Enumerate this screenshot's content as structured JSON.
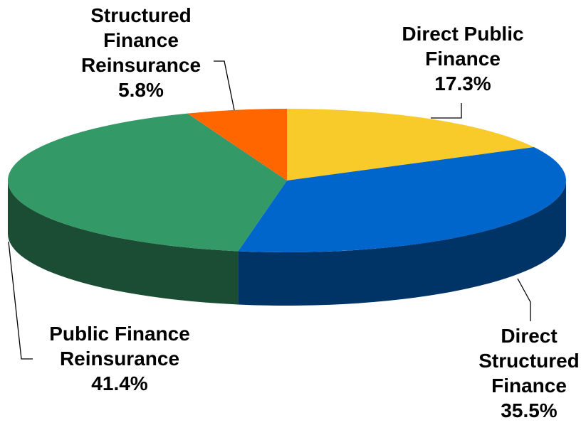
{
  "chart_data": {
    "type": "pie",
    "categories": [
      "Direct Public Finance",
      "Direct Structured Finance",
      "Public Finance Reinsurance",
      "Structured Finance Reinsurance"
    ],
    "values": [
      17.3,
      35.5,
      41.4,
      5.8
    ],
    "value_labels": [
      "17.3%",
      "35.5%",
      "41.4%",
      "5.8%"
    ],
    "colors": [
      "#f9cb2a",
      "#0066cc",
      "#339966",
      "#ff6600"
    ]
  }
}
